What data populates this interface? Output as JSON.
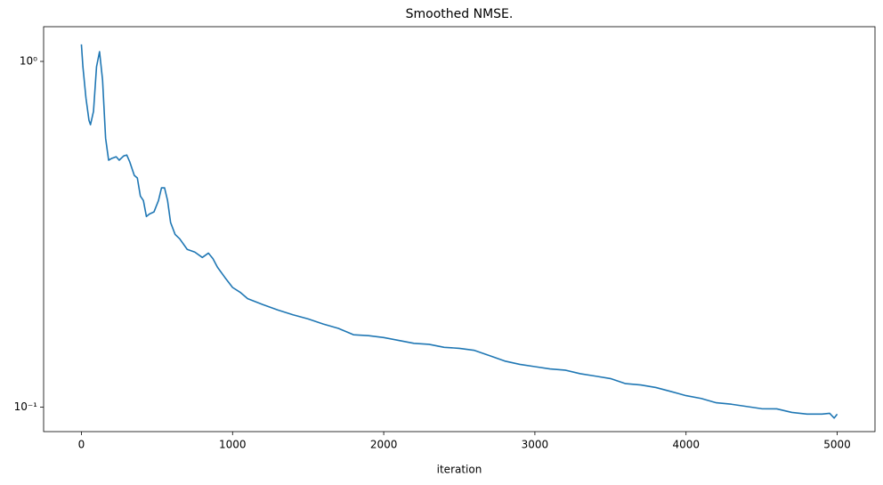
{
  "chart_data": {
    "type": "line",
    "title": "Smoothed NMSE.",
    "xlabel": "iteration",
    "color": "#1f77b4",
    "yscale": "log",
    "xlim": [
      -250,
      5250
    ],
    "ylim": [
      0.085,
      1.26
    ],
    "xticks": [
      0,
      1000,
      2000,
      3000,
      4000,
      5000
    ],
    "yticks": [
      {
        "value": 0.1,
        "label": "10⁻¹"
      },
      {
        "value": 1,
        "label": "10⁰"
      }
    ],
    "x": [
      0,
      10,
      30,
      50,
      60,
      80,
      100,
      120,
      140,
      160,
      180,
      200,
      230,
      250,
      280,
      300,
      320,
      350,
      370,
      390,
      410,
      430,
      450,
      480,
      510,
      530,
      550,
      570,
      590,
      620,
      650,
      700,
      750,
      800,
      840,
      870,
      900,
      950,
      1000,
      1050,
      1100,
      1200,
      1300,
      1400,
      1500,
      1600,
      1700,
      1800,
      1900,
      2000,
      2100,
      2200,
      2300,
      2400,
      2500,
      2600,
      2700,
      2800,
      2900,
      3000,
      3100,
      3200,
      3300,
      3400,
      3500,
      3600,
      3700,
      3800,
      3900,
      4000,
      4100,
      4200,
      4300,
      4400,
      4500,
      4600,
      4700,
      4800,
      4900,
      4950,
      4980,
      5000
    ],
    "values": [
      1.12,
      0.965,
      0.784,
      0.676,
      0.656,
      0.717,
      0.965,
      1.067,
      0.883,
      0.6,
      0.518,
      0.524,
      0.53,
      0.518,
      0.533,
      0.536,
      0.512,
      0.468,
      0.46,
      0.408,
      0.396,
      0.356,
      0.362,
      0.367,
      0.396,
      0.431,
      0.431,
      0.396,
      0.342,
      0.316,
      0.307,
      0.286,
      0.281,
      0.271,
      0.279,
      0.269,
      0.254,
      0.237,
      0.222,
      0.215,
      0.206,
      0.198,
      0.191,
      0.185,
      0.18,
      0.174,
      0.169,
      0.162,
      0.161,
      0.159,
      0.156,
      0.153,
      0.152,
      0.149,
      0.148,
      0.146,
      0.141,
      0.136,
      0.133,
      0.131,
      0.129,
      0.128,
      0.125,
      0.123,
      0.121,
      0.117,
      0.116,
      0.114,
      0.111,
      0.108,
      0.106,
      0.103,
      0.102,
      0.1005,
      0.099,
      0.0989,
      0.0966,
      0.0955,
      0.0955,
      0.096,
      0.093,
      0.0955
    ]
  }
}
